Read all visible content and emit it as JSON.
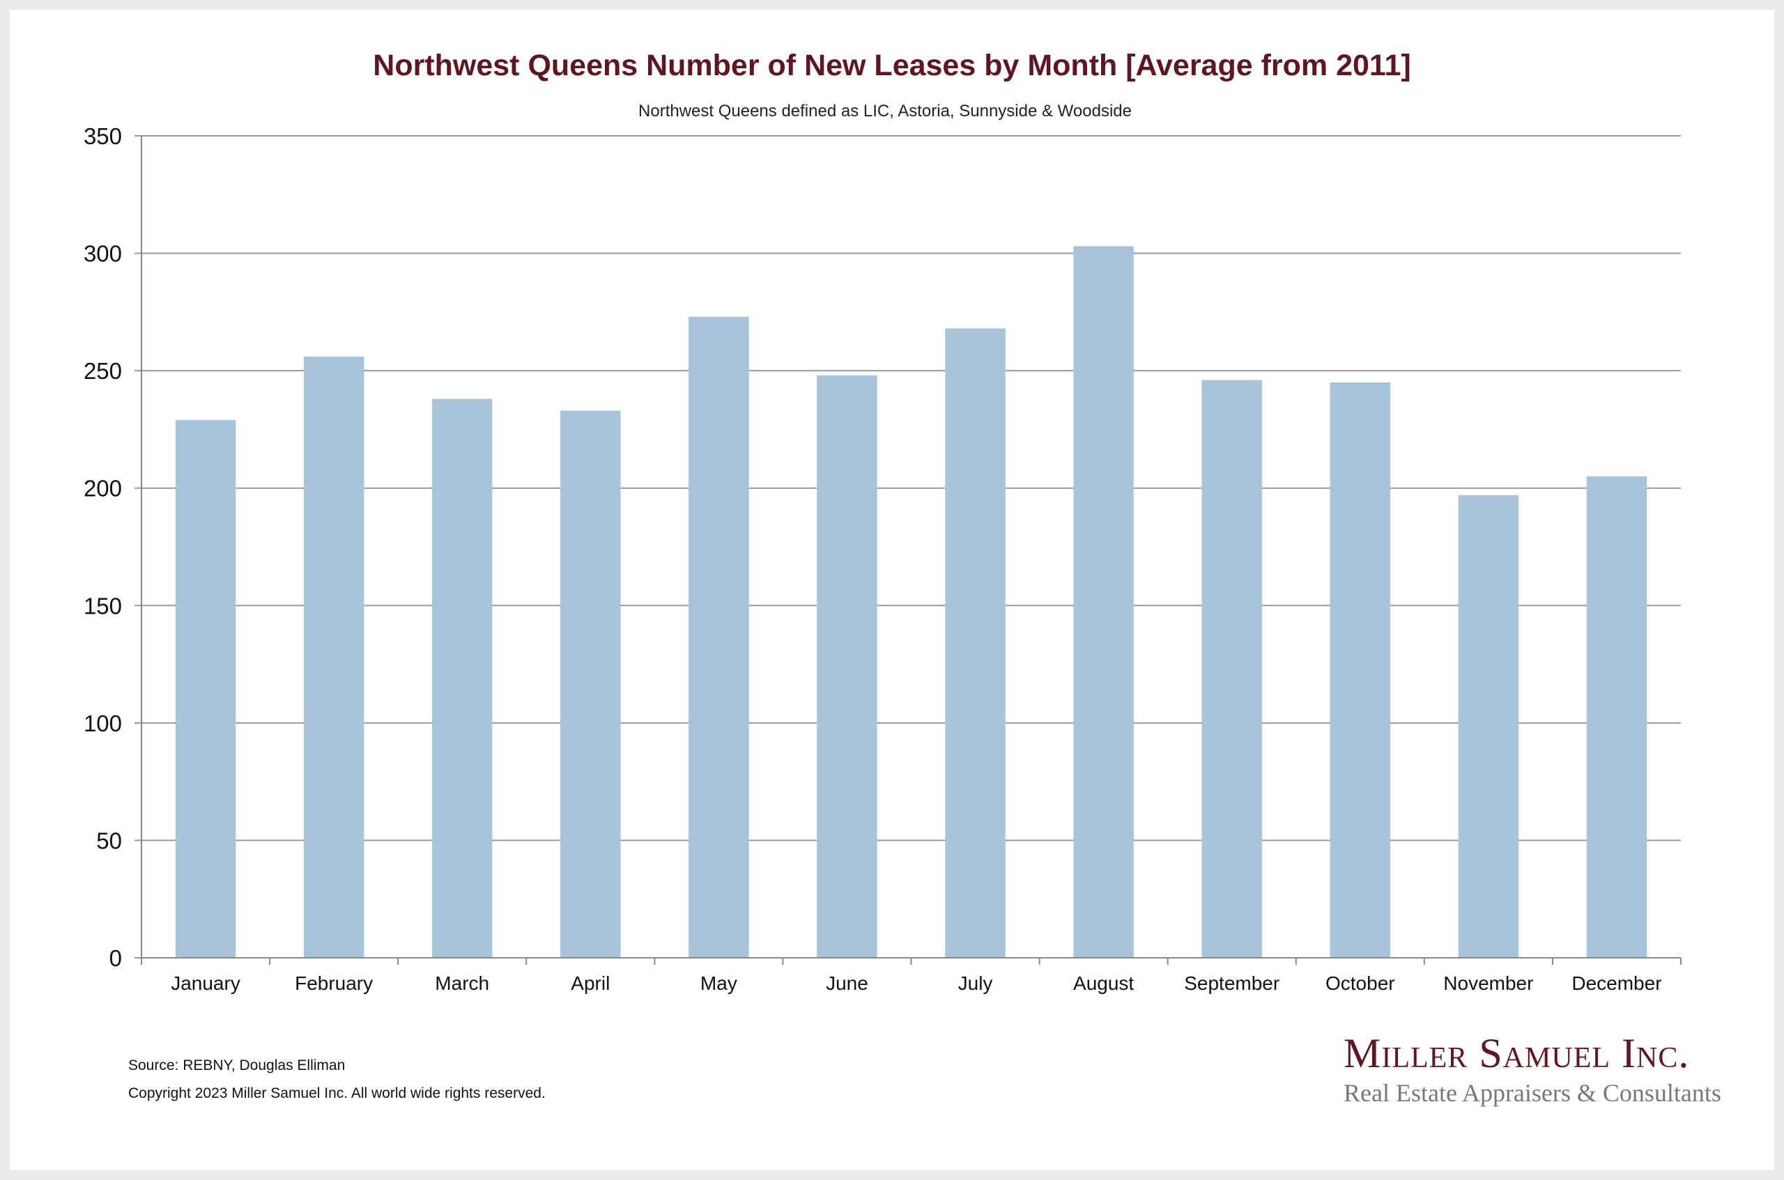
{
  "chart_data": {
    "type": "bar",
    "title": "Northwest Queens Number of New Leases by Month [Average from 2011]",
    "subtitle": "Northwest Queens defined as LIC, Astoria, Sunnyside & Woodside",
    "categories": [
      "January",
      "February",
      "March",
      "April",
      "May",
      "June",
      "July",
      "August",
      "September",
      "October",
      "November",
      "December"
    ],
    "values": [
      229,
      256,
      238,
      233,
      273,
      248,
      268,
      303,
      246,
      245,
      197,
      205
    ],
    "xlabel": "",
    "ylabel": "",
    "ylim": [
      0,
      350
    ],
    "yticks": [
      "0",
      "50",
      "100",
      "150",
      "200",
      "250",
      "300",
      "350"
    ],
    "grid": true,
    "bar_color": "#a9c4d9"
  },
  "footer": {
    "source": "Source: REBNY, Douglas Elliman",
    "copyright": "Copyright 2023 Miller Samuel Inc.  All world wide rights reserved."
  },
  "logo": {
    "name": "Miller Samuel Inc.",
    "tagline": "Real Estate Appraisers & Consultants"
  }
}
